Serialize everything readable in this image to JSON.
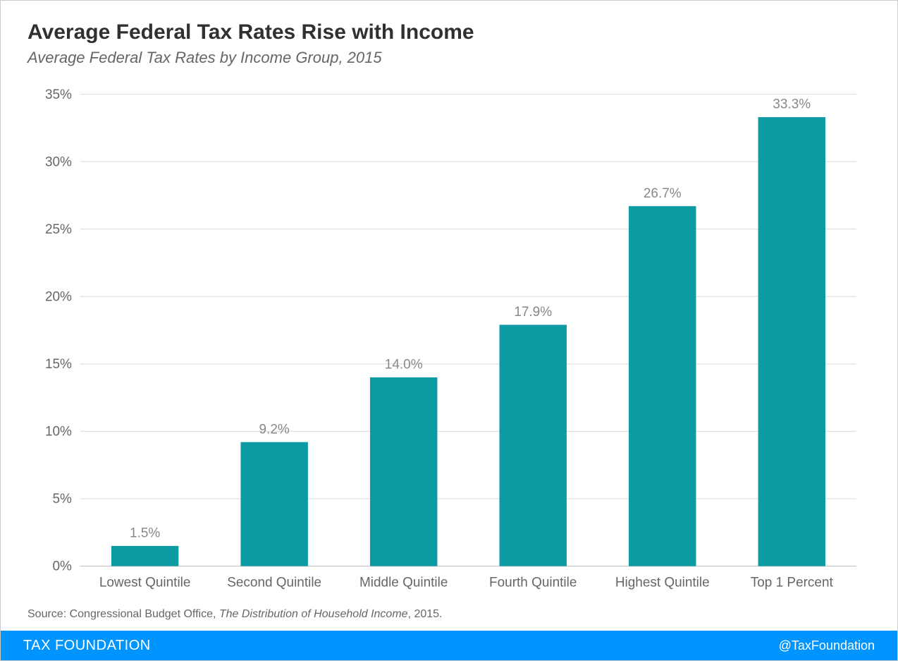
{
  "header": {
    "title": "Average Federal Tax Rates Rise with Income",
    "subtitle": "Average Federal Tax Rates by Income Group, 2015"
  },
  "chart": {
    "type": "bar",
    "categories": [
      "Lowest Quintile",
      "Second Quintile",
      "Middle Quintile",
      "Fourth Quintile",
      "Highest Quintile",
      "Top 1 Percent"
    ],
    "values": [
      1.5,
      9.2,
      14.0,
      17.9,
      26.7,
      33.3
    ],
    "value_labels": [
      "1.5%",
      "9.2%",
      "14.0%",
      "17.9%",
      "26.7%",
      "33.3%"
    ],
    "bar_color": "#0d9ba3",
    "ylim": [
      0,
      35
    ],
    "ytick_step": 5,
    "ytick_labels": [
      "0%",
      "5%",
      "10%",
      "15%",
      "20%",
      "25%",
      "30%",
      "35%"
    ],
    "background_color": "#ffffff",
    "grid_color": "#d9d9d9",
    "axis_color": "#bfbfbf",
    "bar_width_ratio": 0.52,
    "tick_label_color": "#666666",
    "bar_label_color": "#888888",
    "title_fontsize": 30,
    "subtitle_fontsize": 22,
    "tick_fontsize": 19,
    "barlabel_fontsize": 19
  },
  "source": {
    "prefix": "Source: Congressional Budget Office, ",
    "italic": "The Distribution of Household Income",
    "suffix": ", 2015."
  },
  "footer": {
    "left": "TAX FOUNDATION",
    "right": "@TaxFoundation",
    "bg_color": "#0094ff",
    "text_color": "#ffffff"
  }
}
